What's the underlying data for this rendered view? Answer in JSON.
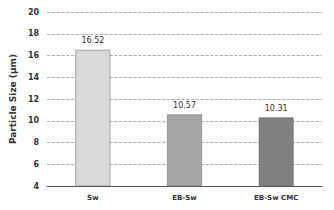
{
  "chart_data": {
    "type": "bar",
    "y_label": "Particle Size (μm)",
    "categories": [
      "Sw",
      "EB-Sw",
      "EB-Sw CMC"
    ],
    "values": [
      16.52,
      10.57,
      10.31
    ],
    "colors": [
      "#d9d9d9",
      "#a6a6a6",
      "#808080"
    ],
    "ylim": [
      4,
      20
    ],
    "yticks": [
      4,
      6,
      8,
      10,
      12,
      14,
      16,
      18,
      20
    ],
    "grid": true,
    "data_labels": true
  }
}
